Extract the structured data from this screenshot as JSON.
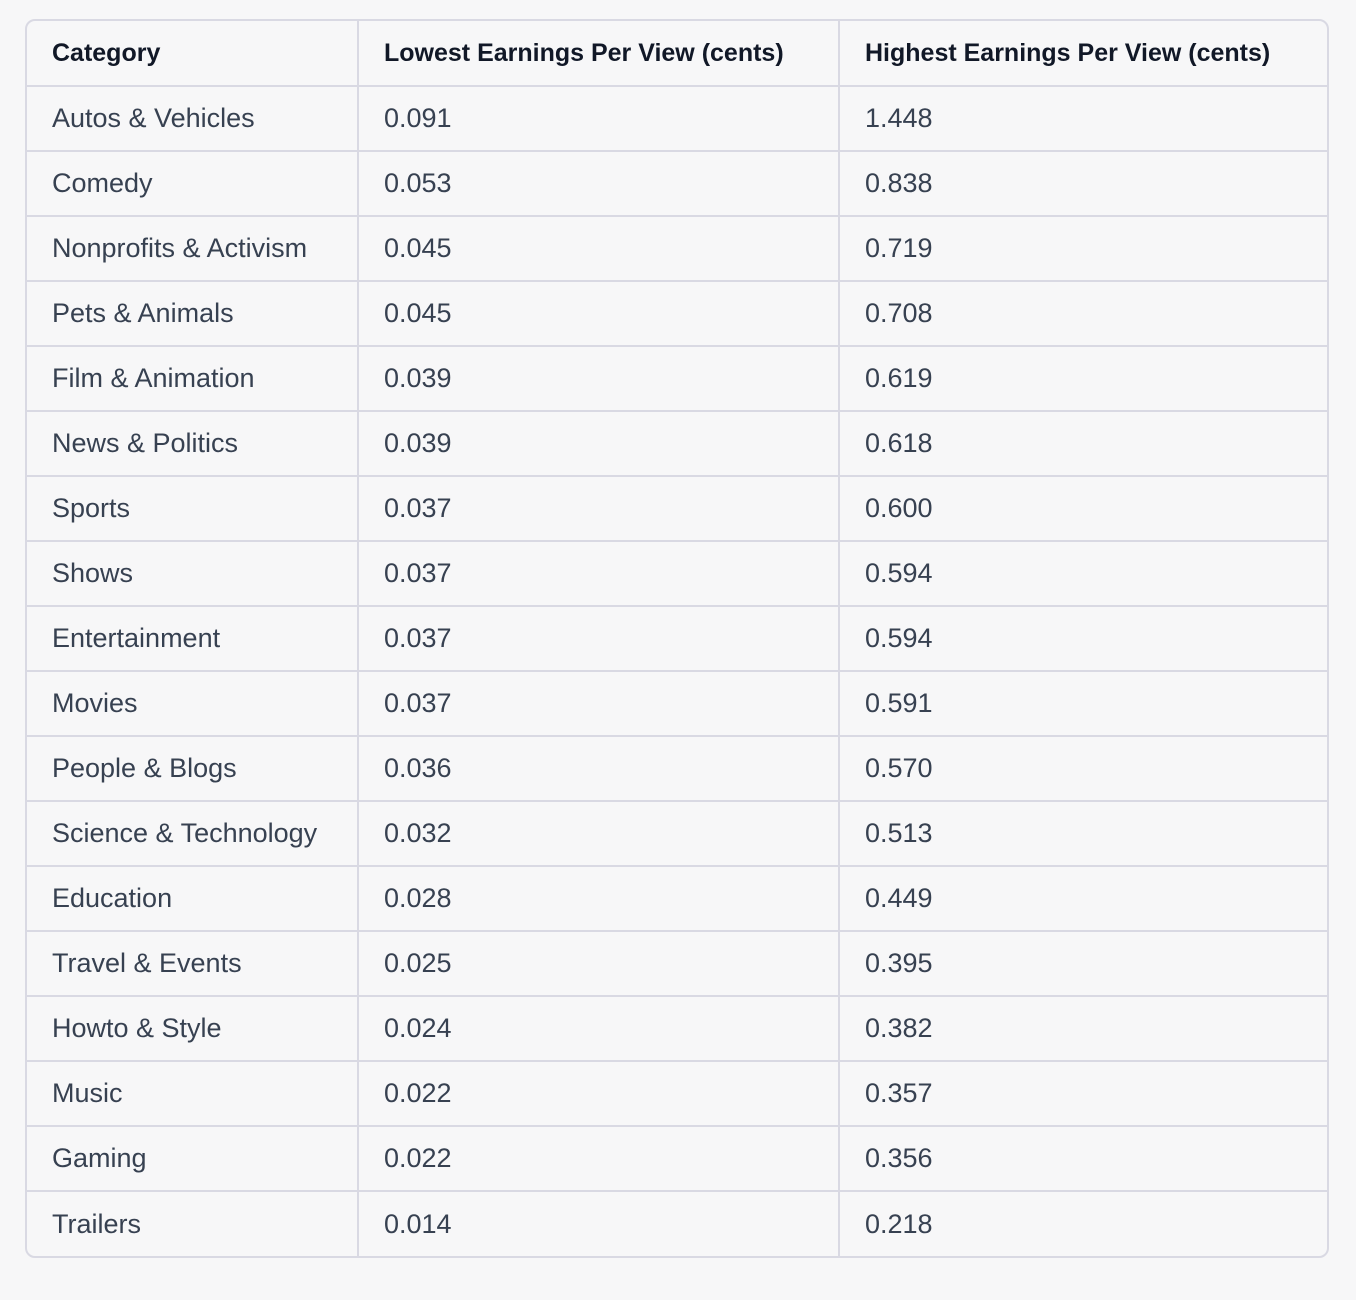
{
  "table": {
    "headers": [
      "Category",
      "Lowest Earnings Per View (cents)",
      "Highest Earnings Per View (cents)"
    ],
    "rows": [
      [
        "Autos & Vehicles",
        "0.091",
        "1.448"
      ],
      [
        "Comedy",
        "0.053",
        "0.838"
      ],
      [
        "Nonprofits & Activism",
        "0.045",
        "0.719"
      ],
      [
        "Pets & Animals",
        "0.045",
        "0.708"
      ],
      [
        "Film & Animation",
        "0.039",
        "0.619"
      ],
      [
        "News & Politics",
        "0.039",
        "0.618"
      ],
      [
        "Sports",
        "0.037",
        "0.600"
      ],
      [
        "Shows",
        "0.037",
        "0.594"
      ],
      [
        "Entertainment",
        "0.037",
        "0.594"
      ],
      [
        "Movies",
        "0.037",
        "0.591"
      ],
      [
        "People & Blogs",
        "0.036",
        "0.570"
      ],
      [
        "Science & Technology",
        "0.032",
        "0.513"
      ],
      [
        "Education",
        "0.028",
        "0.449"
      ],
      [
        "Travel & Events",
        "0.025",
        "0.395"
      ],
      [
        "Howto & Style",
        "0.024",
        "0.382"
      ],
      [
        "Music",
        "0.022",
        "0.357"
      ],
      [
        "Gaming",
        "0.022",
        "0.356"
      ],
      [
        "Trailers",
        "0.014",
        "0.218"
      ]
    ]
  }
}
